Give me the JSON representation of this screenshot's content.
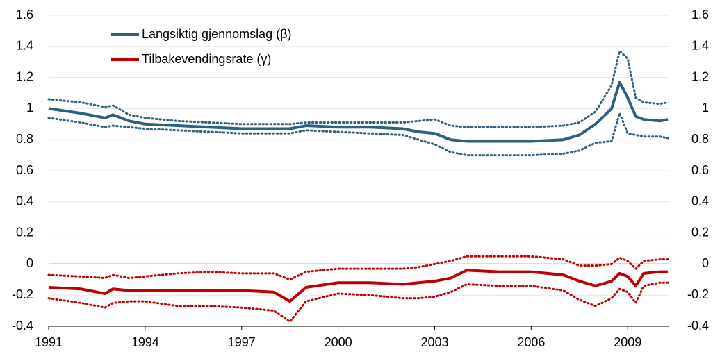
{
  "chart_data": {
    "type": "line",
    "x": [
      1991,
      1992,
      1992.75,
      1993,
      1993.5,
      1994,
      1995,
      1996,
      1997,
      1998,
      1998.5,
      1999,
      2000,
      2001,
      2002,
      2002.5,
      2003,
      2003.5,
      2004,
      2005,
      2006,
      2007,
      2007.5,
      2008,
      2008.5,
      2008.75,
      2009,
      2009.25,
      2009.5,
      2010,
      2010.25
    ],
    "series": [
      {
        "name": "Langsiktig gjennomslag (β)",
        "color": "#2e5f7f",
        "values": [
          1.0,
          0.97,
          0.94,
          0.96,
          0.92,
          0.9,
          0.89,
          0.88,
          0.87,
          0.87,
          0.87,
          0.89,
          0.88,
          0.88,
          0.87,
          0.85,
          0.84,
          0.8,
          0.79,
          0.79,
          0.79,
          0.8,
          0.83,
          0.9,
          1.0,
          1.17,
          1.07,
          0.95,
          0.93,
          0.92,
          0.93
        ],
        "upper": [
          1.06,
          1.04,
          1.01,
          1.02,
          0.96,
          0.94,
          0.92,
          0.91,
          0.9,
          0.9,
          0.9,
          0.91,
          0.91,
          0.91,
          0.91,
          0.92,
          0.93,
          0.89,
          0.88,
          0.88,
          0.88,
          0.89,
          0.91,
          0.98,
          1.15,
          1.37,
          1.32,
          1.07,
          1.04,
          1.03,
          1.04
        ],
        "lower": [
          0.94,
          0.91,
          0.88,
          0.89,
          0.88,
          0.87,
          0.86,
          0.85,
          0.84,
          0.84,
          0.84,
          0.86,
          0.85,
          0.84,
          0.83,
          0.8,
          0.77,
          0.72,
          0.7,
          0.7,
          0.7,
          0.71,
          0.73,
          0.78,
          0.79,
          0.97,
          0.84,
          0.83,
          0.82,
          0.82,
          0.81
        ]
      },
      {
        "name": "Tilbakevendingsrate (γ)",
        "color": "#c00000",
        "values": [
          -0.15,
          -0.16,
          -0.19,
          -0.16,
          -0.17,
          -0.17,
          -0.17,
          -0.17,
          -0.17,
          -0.18,
          -0.24,
          -0.15,
          -0.12,
          -0.12,
          -0.13,
          -0.12,
          -0.11,
          -0.09,
          -0.04,
          -0.05,
          -0.05,
          -0.07,
          -0.11,
          -0.14,
          -0.11,
          -0.06,
          -0.08,
          -0.14,
          -0.06,
          -0.05,
          -0.05
        ],
        "upper": [
          -0.07,
          -0.08,
          -0.09,
          -0.07,
          -0.09,
          -0.08,
          -0.06,
          -0.05,
          -0.06,
          -0.06,
          -0.1,
          -0.05,
          -0.03,
          -0.03,
          -0.03,
          -0.02,
          0.0,
          0.02,
          0.05,
          0.05,
          0.05,
          0.03,
          -0.01,
          -0.01,
          0.0,
          0.04,
          0.02,
          -0.03,
          0.02,
          0.03,
          0.03
        ],
        "lower": [
          -0.22,
          -0.25,
          -0.28,
          -0.25,
          -0.24,
          -0.24,
          -0.27,
          -0.27,
          -0.28,
          -0.3,
          -0.37,
          -0.24,
          -0.19,
          -0.2,
          -0.22,
          -0.22,
          -0.21,
          -0.18,
          -0.13,
          -0.14,
          -0.14,
          -0.17,
          -0.23,
          -0.27,
          -0.22,
          -0.16,
          -0.18,
          -0.25,
          -0.14,
          -0.12,
          -0.12
        ]
      }
    ],
    "xlim": [
      1991,
      2010.27
    ],
    "xticks": [
      1991,
      1994,
      1997,
      2000,
      2003,
      2006,
      2009
    ],
    "ylim": [
      -0.4,
      1.6
    ],
    "yticks": [
      1.6,
      1.4,
      1.2,
      1,
      0.8,
      0.6,
      0.4,
      0.2,
      0,
      -0.2,
      -0.4
    ],
    "grid": true,
    "legend": "top-left"
  }
}
